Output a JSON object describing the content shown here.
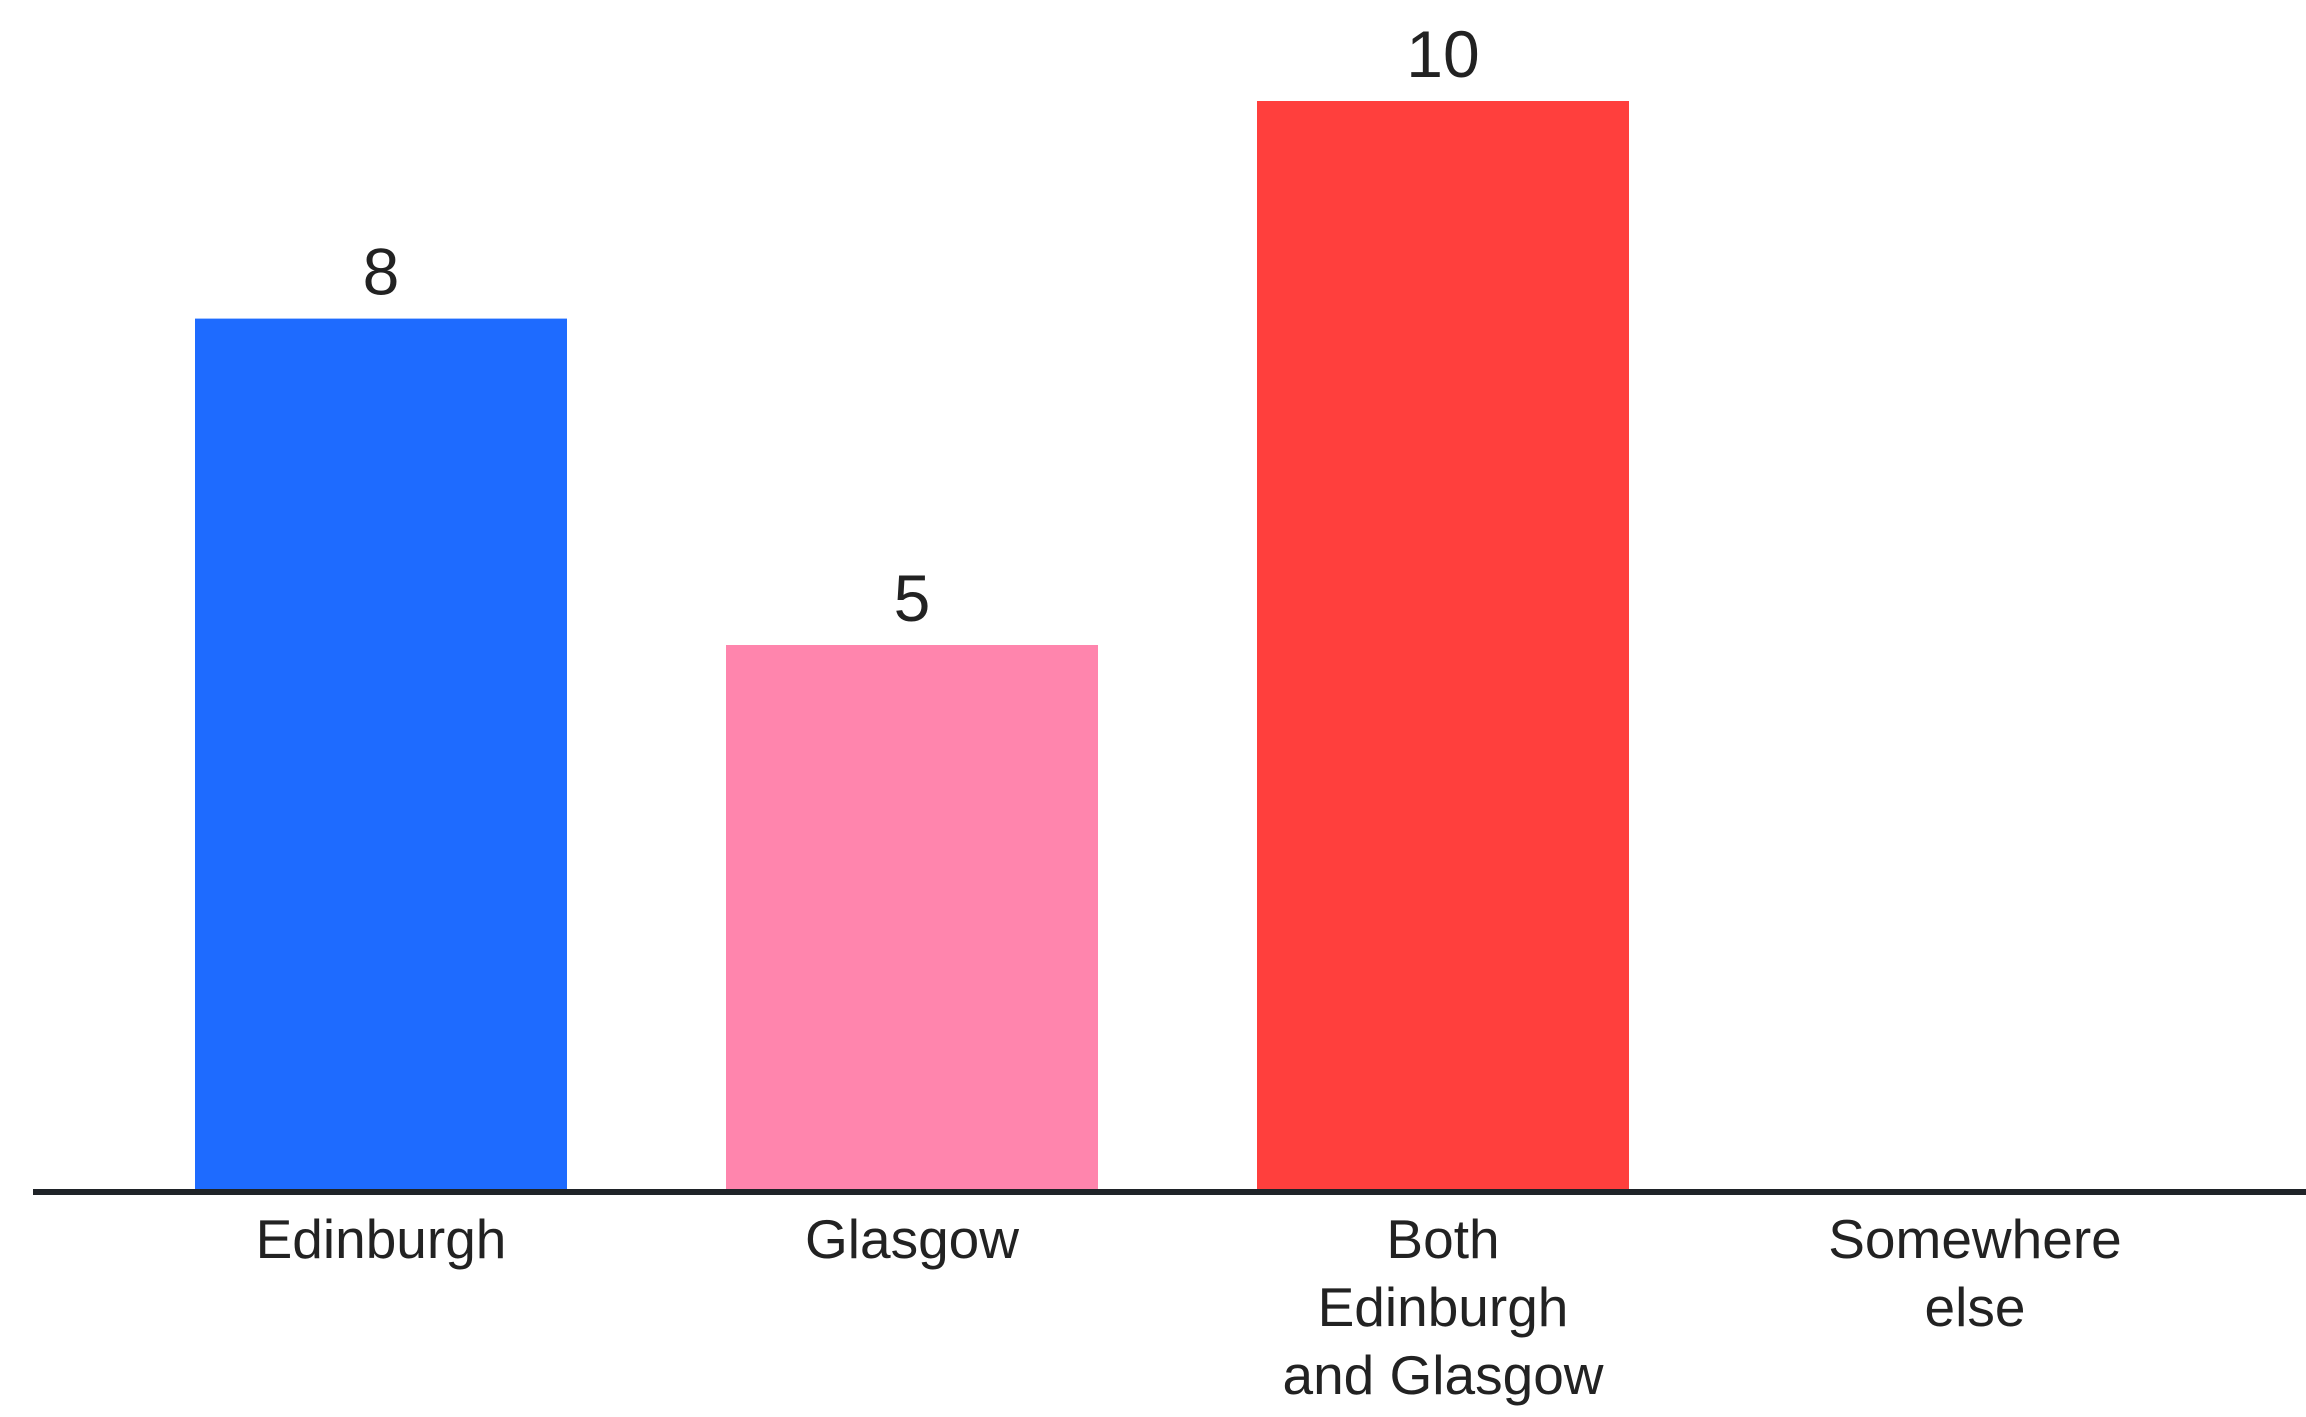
{
  "chart_data": {
    "type": "bar",
    "categories": [
      "Edinburgh",
      "Glasgow",
      "Both Edinburgh and Glasgow",
      "Somewhere else"
    ],
    "category_label_lines": [
      [
        "Edinburgh"
      ],
      [
        "Glasgow"
      ],
      [
        "Both",
        "Edinburgh",
        "and Glasgow"
      ],
      [
        "Somewhere",
        "else"
      ]
    ],
    "values": [
      8,
      5,
      10,
      0
    ],
    "value_labels": [
      "8",
      "5",
      "10",
      ""
    ],
    "colors": [
      "#1E6BFF",
      "#FF85AD",
      "#FF3F3D",
      "#FFFFFF"
    ],
    "ylim": [
      0,
      10
    ],
    "grid": false,
    "legend": "none"
  }
}
